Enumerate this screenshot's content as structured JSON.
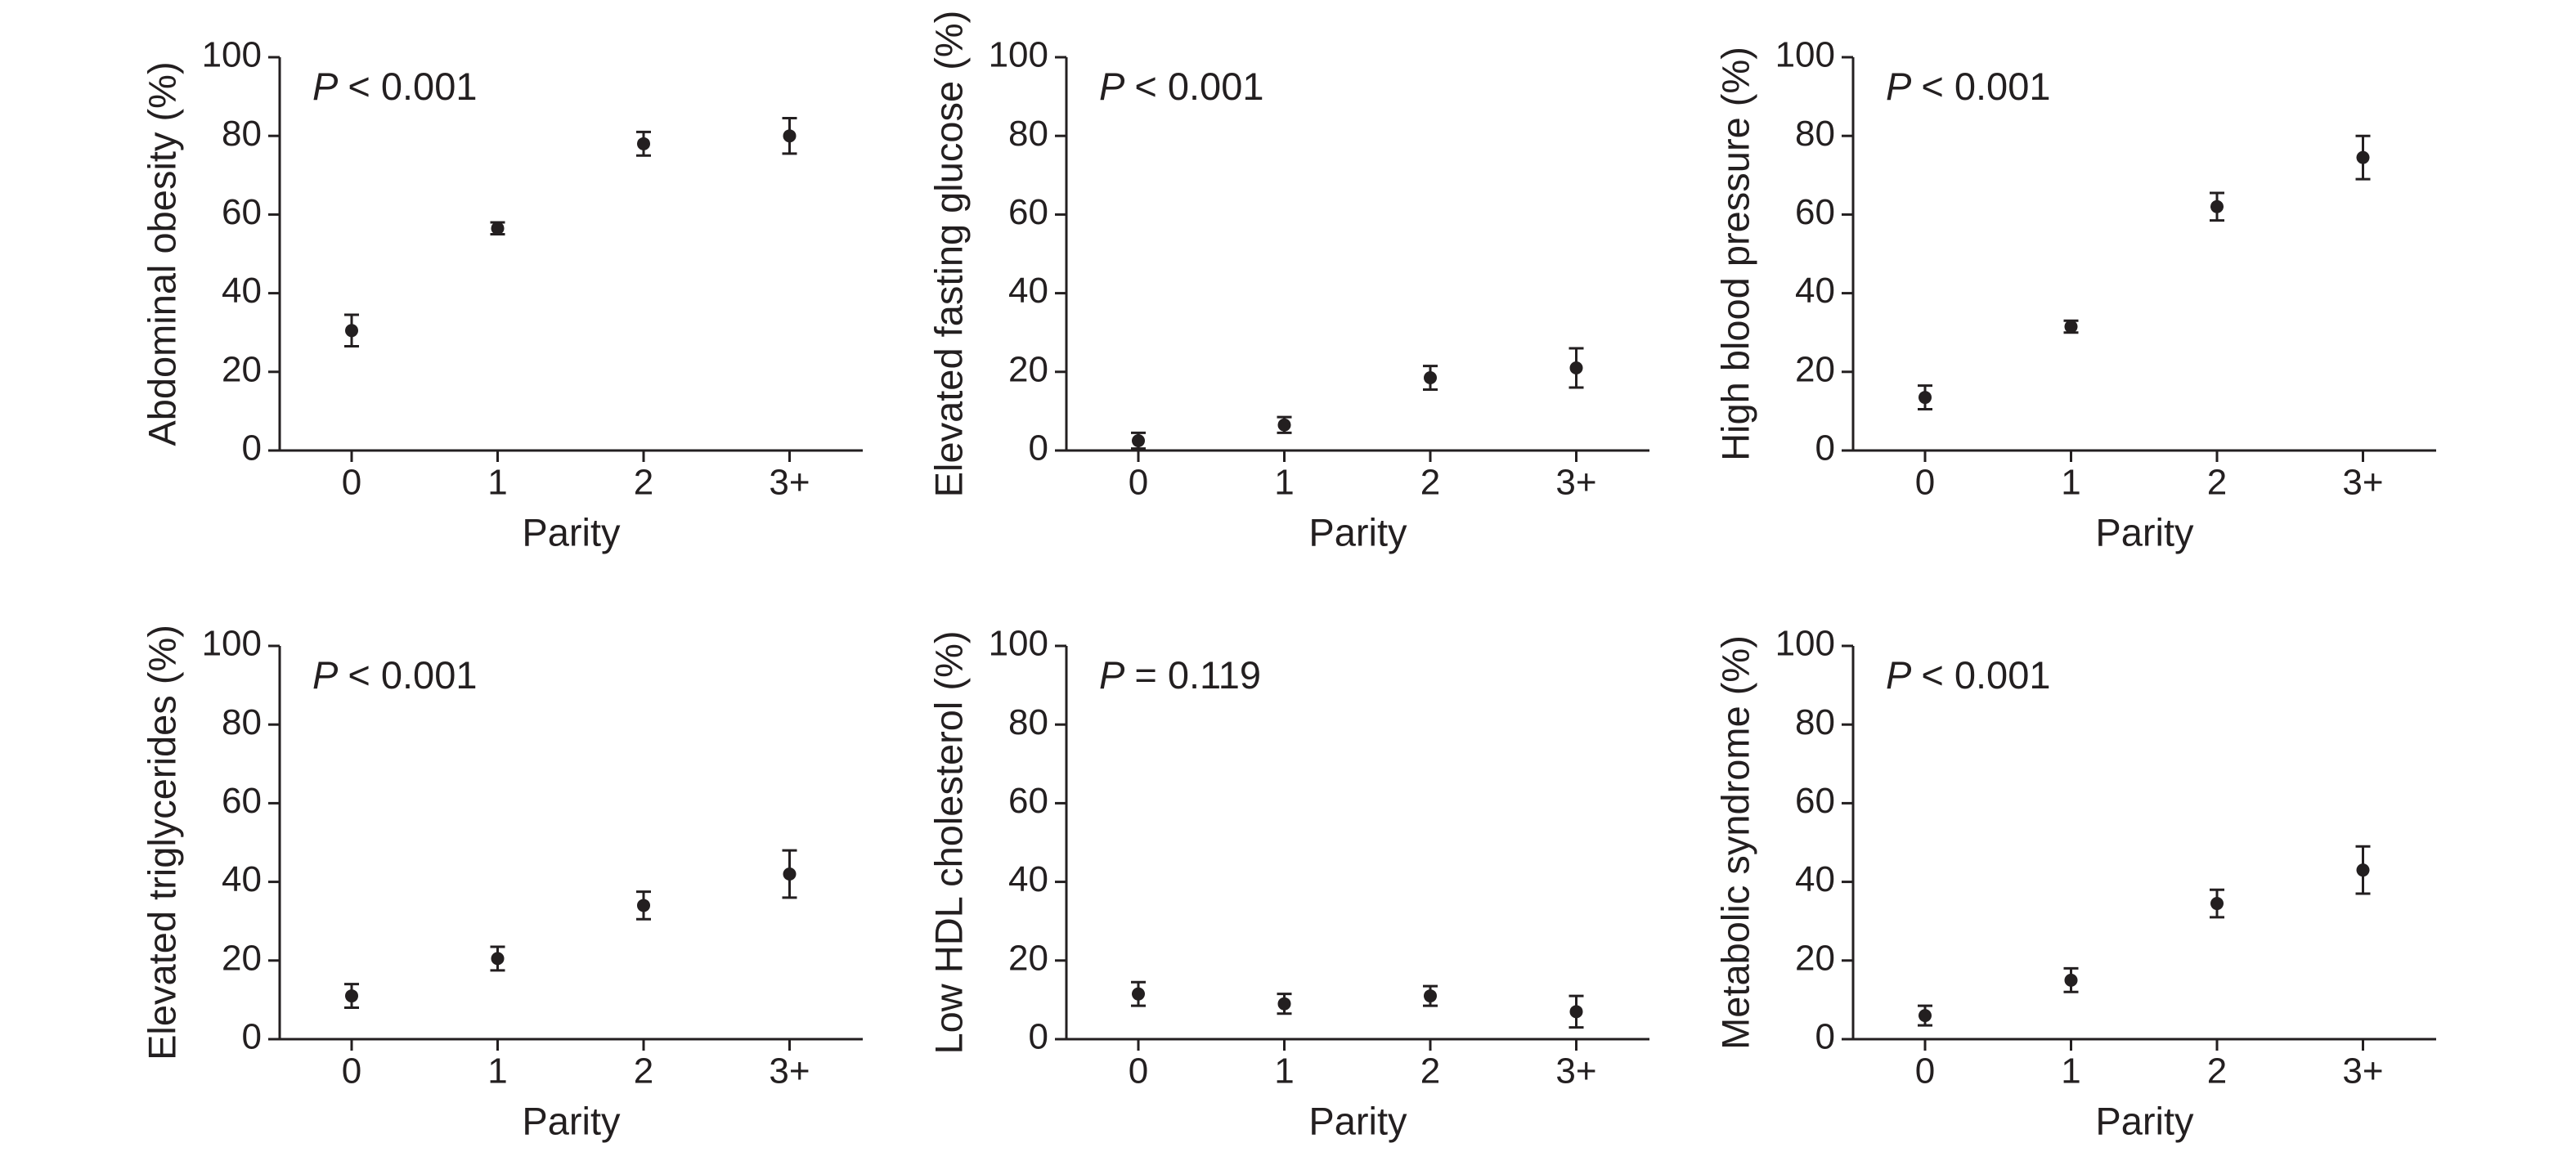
{
  "chart_data": [
    {
      "type": "scatter",
      "y_label": "Abdominal obesity (%)",
      "x_label": "Parity",
      "annotation_symbol": "P",
      "annotation_text": "< 0.001",
      "categories": [
        "0",
        "1",
        "2",
        "3+"
      ],
      "values": [
        30.5,
        56.5,
        78,
        80
      ],
      "errors": [
        4,
        1.5,
        3,
        4.5
      ],
      "color": "#231f20",
      "ylim": [
        0,
        100
      ],
      "yticks": [
        0,
        20,
        40,
        60,
        80,
        100
      ]
    },
    {
      "type": "scatter",
      "y_label": "Elevated fasting glucose (%)",
      "x_label": "Parity",
      "annotation_symbol": "P",
      "annotation_text": "< 0.001",
      "categories": [
        "0",
        "1",
        "2",
        "3+"
      ],
      "values": [
        2.5,
        6.5,
        18.5,
        21
      ],
      "errors": [
        2,
        2,
        3,
        5
      ],
      "color": "#231f20",
      "ylim": [
        0,
        100
      ],
      "yticks": [
        0,
        20,
        40,
        60,
        80,
        100
      ]
    },
    {
      "type": "scatter",
      "y_label": "High blood pressure (%)",
      "x_label": "Parity",
      "annotation_symbol": "P",
      "annotation_text": "< 0.001",
      "categories": [
        "0",
        "1",
        "2",
        "3+"
      ],
      "values": [
        13.5,
        31.5,
        62,
        74.5
      ],
      "errors": [
        3,
        1.5,
        3.5,
        5.5
      ],
      "color": "#231f20",
      "ylim": [
        0,
        100
      ],
      "yticks": [
        0,
        20,
        40,
        60,
        80,
        100
      ]
    },
    {
      "type": "scatter",
      "y_label": "Elevated triglycerides (%)",
      "x_label": "Parity",
      "annotation_symbol": "P",
      "annotation_text": "< 0.001",
      "categories": [
        "0",
        "1",
        "2",
        "3+"
      ],
      "values": [
        11,
        20.5,
        34,
        42
      ],
      "errors": [
        3,
        3,
        3.5,
        6
      ],
      "color": "#231f20",
      "ylim": [
        0,
        100
      ],
      "yticks": [
        0,
        20,
        40,
        60,
        80,
        100
      ]
    },
    {
      "type": "scatter",
      "y_label": "Low HDL cholesterol (%)",
      "x_label": "Parity",
      "annotation_symbol": "P",
      "annotation_text": "= 0.119",
      "categories": [
        "0",
        "1",
        "2",
        "3+"
      ],
      "values": [
        11.5,
        9,
        11,
        7
      ],
      "errors": [
        3,
        2.5,
        2.5,
        4
      ],
      "color": "#231f20",
      "ylim": [
        0,
        100
      ],
      "yticks": [
        0,
        20,
        40,
        60,
        80,
        100
      ]
    },
    {
      "type": "scatter",
      "y_label": "Metabolic syndrome (%)",
      "x_label": "Parity",
      "annotation_symbol": "P",
      "annotation_text": "< 0.001",
      "categories": [
        "0",
        "1",
        "2",
        "3+"
      ],
      "values": [
        6,
        15,
        34.5,
        43
      ],
      "errors": [
        2.5,
        3,
        3.5,
        6
      ],
      "color": "#231f20",
      "ylim": [
        0,
        100
      ],
      "yticks": [
        0,
        20,
        40,
        60,
        80,
        100
      ]
    }
  ]
}
